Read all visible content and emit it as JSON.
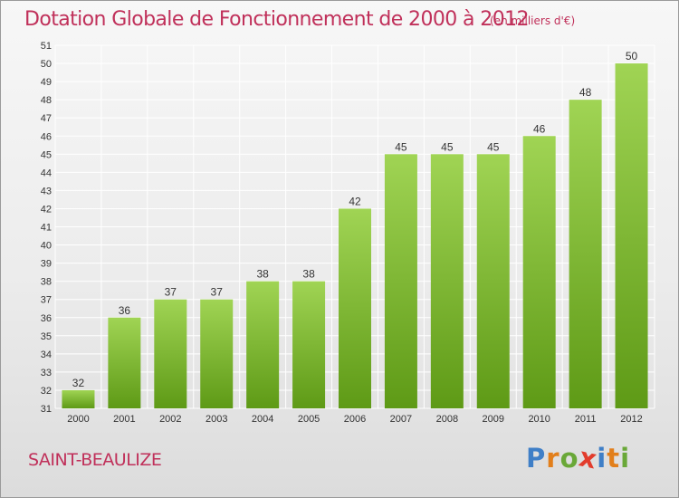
{
  "title": "Dotation Globale de Fonctionnement de 2000 à 2012",
  "subtitle": "(en milliers d'€)",
  "commune": "SAINT-BEAULIZE",
  "logo": {
    "letters": [
      "P",
      "r",
      "o",
      "x",
      "i",
      "t",
      "i"
    ],
    "colors": [
      "#3f7fc7",
      "#e27f1b",
      "#6aa838",
      "#e23c2c",
      "#3f7fc7",
      "#e27f1b",
      "#6aa838"
    ]
  },
  "colors": {
    "title": "#c0305a",
    "bar_light": "#a0d454",
    "bar_dark": "#5e9a16",
    "grid": "#ffffff",
    "axis_text": "#333333"
  },
  "chart_data": {
    "type": "bar",
    "categories": [
      "2000",
      "2001",
      "2002",
      "2003",
      "2004",
      "2005",
      "2006",
      "2007",
      "2008",
      "2009",
      "2010",
      "2011",
      "2012"
    ],
    "values": [
      32,
      36,
      37,
      37,
      38,
      38,
      42,
      45,
      45,
      45,
      46,
      48,
      50
    ],
    "ylim": [
      31,
      51
    ],
    "yticks": [
      31,
      32,
      33,
      34,
      35,
      36,
      37,
      38,
      39,
      40,
      41,
      42,
      43,
      44,
      45,
      46,
      47,
      48,
      49,
      50,
      51
    ],
    "grid": true,
    "data_labels": true
  }
}
